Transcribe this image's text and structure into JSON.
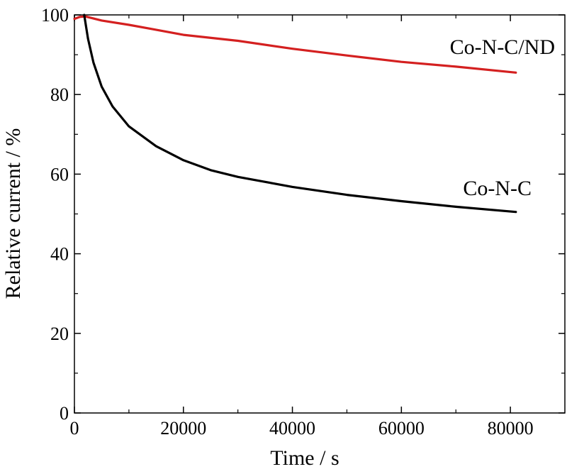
{
  "chart_data": {
    "type": "line",
    "title": "",
    "xlabel": "Time / s",
    "ylabel": "Relative current / %",
    "xlim": [
      0,
      90000
    ],
    "ylim": [
      0,
      100
    ],
    "xticks": [
      0,
      20000,
      40000,
      60000,
      80000
    ],
    "xtick_labels": [
      "0",
      "20000",
      "40000",
      "60000",
      "80000"
    ],
    "yticks": [
      0,
      20,
      40,
      60,
      80,
      100
    ],
    "ytick_labels": [
      "0",
      "20",
      "40",
      "60",
      "80",
      "100"
    ],
    "grid": false,
    "legend": "none",
    "series": [
      {
        "name": "Co-N-C/ND",
        "color": "#d42020",
        "x": [
          0,
          1000,
          2000,
          5000,
          10000,
          14000,
          20000,
          30000,
          40000,
          50000,
          60000,
          70000,
          81000
        ],
        "y": [
          99.0,
          99.5,
          99.6,
          98.6,
          97.5,
          96.5,
          95.0,
          93.5,
          91.5,
          89.8,
          88.2,
          87.0,
          85.5
        ]
      },
      {
        "name": "Co-N-C",
        "color": "#000000",
        "x": [
          1800,
          2500,
          3500,
          5000,
          7000,
          10000,
          15000,
          20000,
          25000,
          30000,
          40000,
          50000,
          60000,
          70000,
          81000
        ],
        "y": [
          100,
          94,
          88,
          82,
          77,
          72,
          67,
          63.5,
          61,
          59.3,
          56.8,
          54.8,
          53.2,
          51.8,
          50.5
        ]
      }
    ]
  }
}
